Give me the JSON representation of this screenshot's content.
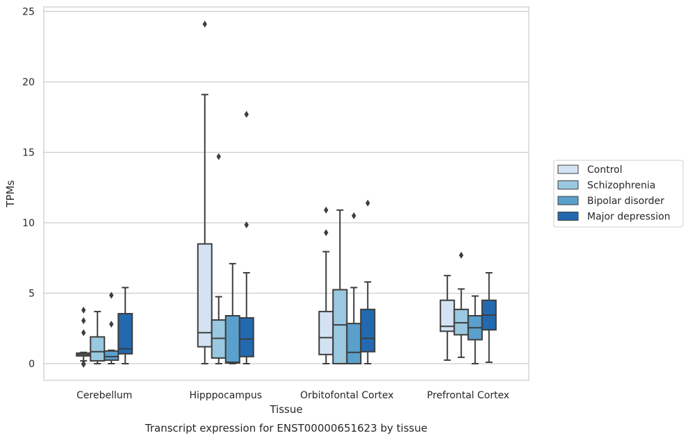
{
  "chart_data": {
    "type": "box",
    "caption": "Transcript expression for ENST00000651623 by tissue",
    "xlabel": "Tissue",
    "ylabel": "TPMs",
    "ylim": [
      -1.2,
      25.4
    ],
    "yticks": [
      0,
      5,
      10,
      15,
      20,
      25
    ],
    "grid": "horizontal",
    "legend_position": "right",
    "categories": [
      "Cerebellum",
      "Hipppocampus",
      "Orbitofontal Cortex",
      "Prefrontal Cortex"
    ],
    "series": [
      {
        "name": "Control",
        "color": "#d3e3f3",
        "boxes": [
          {
            "whislo": 0.2,
            "q1": 0.55,
            "med": 0.65,
            "q3": 0.75,
            "whishi": 0.8,
            "fliers": [
              3.8,
              3.05,
              2.2,
              0.0,
              -0.05
            ]
          },
          {
            "whislo": 0.0,
            "q1": 1.2,
            "med": 2.2,
            "q3": 8.5,
            "whishi": 19.1,
            "fliers": [
              24.1
            ]
          },
          {
            "whislo": 0.0,
            "q1": 0.65,
            "med": 1.85,
            "q3": 3.7,
            "whishi": 7.95,
            "fliers": [
              10.9,
              9.3
            ]
          },
          {
            "whislo": 0.25,
            "q1": 2.3,
            "med": 2.65,
            "q3": 4.5,
            "whishi": 6.25,
            "fliers": []
          }
        ]
      },
      {
        "name": "Schizophrenia",
        "color": "#9ac8e0",
        "boxes": [
          {
            "whislo": 0.0,
            "q1": 0.2,
            "med": 0.85,
            "q3": 1.9,
            "whishi": 3.7,
            "fliers": []
          },
          {
            "whislo": 0.0,
            "q1": 0.4,
            "med": 1.8,
            "q3": 3.1,
            "whishi": 4.75,
            "fliers": [
              14.7
            ]
          },
          {
            "whislo": 0.0,
            "q1": 0.0,
            "med": 2.75,
            "q3": 5.25,
            "whishi": 10.9,
            "fliers": []
          },
          {
            "whislo": 0.45,
            "q1": 2.05,
            "med": 2.9,
            "q3": 3.85,
            "whishi": 5.3,
            "fliers": [
              7.7
            ]
          }
        ]
      },
      {
        "name": "Bipolar disorder",
        "color": "#5aa0cd",
        "boxes": [
          {
            "whislo": 0.0,
            "q1": 0.25,
            "med": 0.5,
            "q3": 0.9,
            "whishi": 0.95,
            "fliers": [
              4.85,
              2.8
            ]
          },
          {
            "whislo": 0.0,
            "q1": 0.05,
            "med": 0.1,
            "q3": 3.4,
            "whishi": 7.1,
            "fliers": []
          },
          {
            "whislo": 0.0,
            "q1": 0.0,
            "med": 0.8,
            "q3": 2.85,
            "whishi": 5.4,
            "fliers": [
              10.5
            ]
          },
          {
            "whislo": 0.0,
            "q1": 1.7,
            "med": 2.55,
            "q3": 3.4,
            "whishi": 4.8,
            "fliers": []
          }
        ]
      },
      {
        "name": "Major depression",
        "color": "#2369b0",
        "boxes": [
          {
            "whislo": 0.0,
            "q1": 0.7,
            "med": 1.05,
            "q3": 3.55,
            "whishi": 5.4,
            "fliers": []
          },
          {
            "whislo": 0.0,
            "q1": 0.5,
            "med": 1.75,
            "q3": 3.25,
            "whishi": 6.45,
            "fliers": [
              17.7,
              9.85
            ]
          },
          {
            "whislo": 0.0,
            "q1": 0.85,
            "med": 1.8,
            "q3": 3.85,
            "whishi": 5.8,
            "fliers": [
              11.4
            ]
          },
          {
            "whislo": 0.1,
            "q1": 2.4,
            "med": 3.45,
            "q3": 4.5,
            "whishi": 6.45,
            "fliers": []
          }
        ]
      }
    ]
  }
}
